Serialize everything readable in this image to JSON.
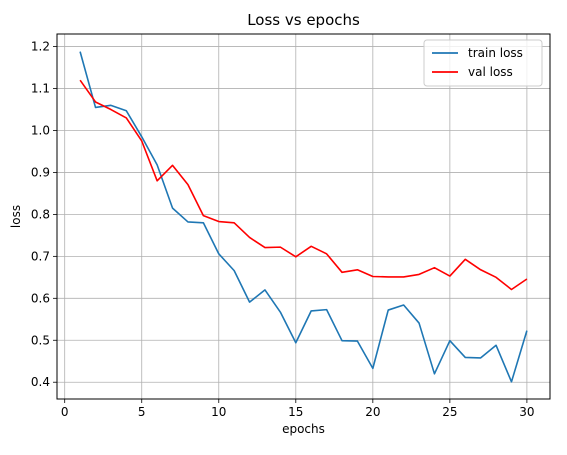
{
  "chart_data": {
    "type": "line",
    "title": "Loss vs epochs",
    "xlabel": "epochs",
    "ylabel": "loss",
    "xlim": [
      -0.5,
      31.5
    ],
    "ylim": [
      0.36,
      1.23
    ],
    "xticks": [
      0,
      5,
      10,
      15,
      20,
      25,
      30
    ],
    "yticks": [
      0.4,
      0.5,
      0.6,
      0.7,
      0.8,
      0.9,
      1.0,
      1.1,
      1.2
    ],
    "grid": true,
    "legend": "top-right",
    "x": [
      1,
      2,
      3,
      4,
      5,
      6,
      7,
      8,
      9,
      10,
      11,
      12,
      13,
      14,
      15,
      16,
      17,
      18,
      19,
      20,
      21,
      22,
      23,
      24,
      25,
      26,
      27,
      28,
      29,
      30
    ],
    "series": [
      {
        "name": "train loss",
        "color": "#1f77b4",
        "values": [
          1.188,
          1.055,
          1.06,
          1.047,
          0.985,
          0.918,
          0.815,
          0.782,
          0.78,
          0.706,
          0.666,
          0.591,
          0.62,
          0.567,
          0.494,
          0.57,
          0.573,
          0.499,
          0.498,
          0.433,
          0.572,
          0.584,
          0.541,
          0.42,
          0.499,
          0.459,
          0.458,
          0.488,
          0.401,
          0.523
        ]
      },
      {
        "name": "val loss",
        "color": "#ff0000",
        "values": [
          1.12,
          1.068,
          1.05,
          1.03,
          0.975,
          0.88,
          0.917,
          0.871,
          0.797,
          0.783,
          0.78,
          0.745,
          0.721,
          0.722,
          0.699,
          0.724,
          0.706,
          0.662,
          0.668,
          0.652,
          0.651,
          0.651,
          0.657,
          0.673,
          0.653,
          0.693,
          0.668,
          0.65,
          0.621,
          0.646
        ]
      }
    ]
  }
}
